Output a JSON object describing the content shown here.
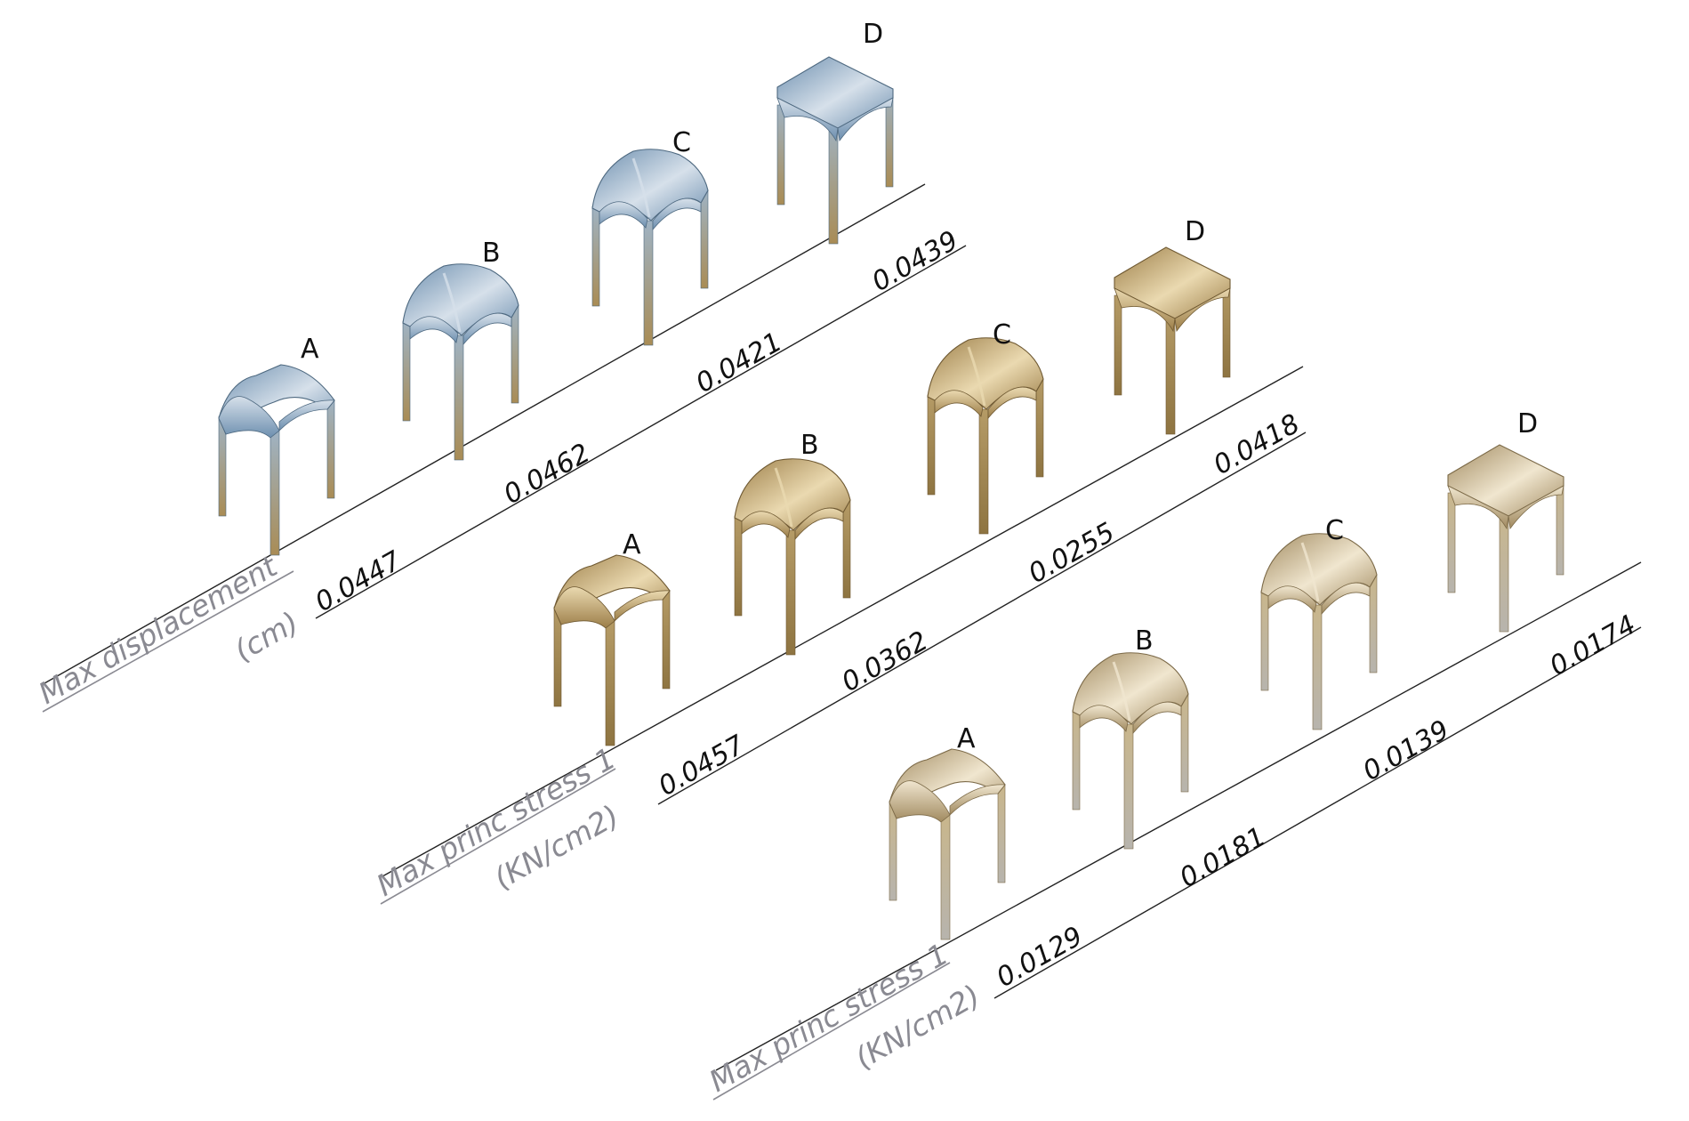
{
  "rows": [
    {
      "title": "Max displacement",
      "unit": "(cm)",
      "material": "blue",
      "letters": [
        "A",
        "B",
        "C",
        "D"
      ],
      "values": [
        "0.0447",
        "0.0462",
        "0.0421",
        "0.0439"
      ]
    },
    {
      "title": "Max princ stress 1",
      "unit": "(KN/cm2)",
      "material": "tan",
      "letters": [
        "A",
        "B",
        "C",
        "D"
      ],
      "values": [
        "0.0457",
        "0.0362",
        "0.0255",
        "0.0418"
      ]
    },
    {
      "title": "Max princ stress 1",
      "unit": "(KN/cm2)",
      "material": "pale",
      "letters": [
        "A",
        "B",
        "C",
        "D"
      ],
      "values": [
        "0.0129",
        "0.0181",
        "0.0139",
        "0.0174"
      ]
    }
  ],
  "materials": {
    "blue": {
      "top": "#6d8faf",
      "light": "#d6e0ea",
      "leg_top": "#9fb3c4",
      "leg_bottom": "#a98c55",
      "edge": "#4e6980"
    },
    "tan": {
      "top": "#9c7e48",
      "light": "#ead9b0",
      "leg_top": "#b59b66",
      "leg_bottom": "#8e7441",
      "edge": "#6f5932"
    },
    "pale": {
      "top": "#a18a60",
      "light": "#f0e6cf",
      "leg_top": "#c9b68c",
      "leg_bottom": "#b7b4ad",
      "edge": "#7c6a48"
    }
  }
}
